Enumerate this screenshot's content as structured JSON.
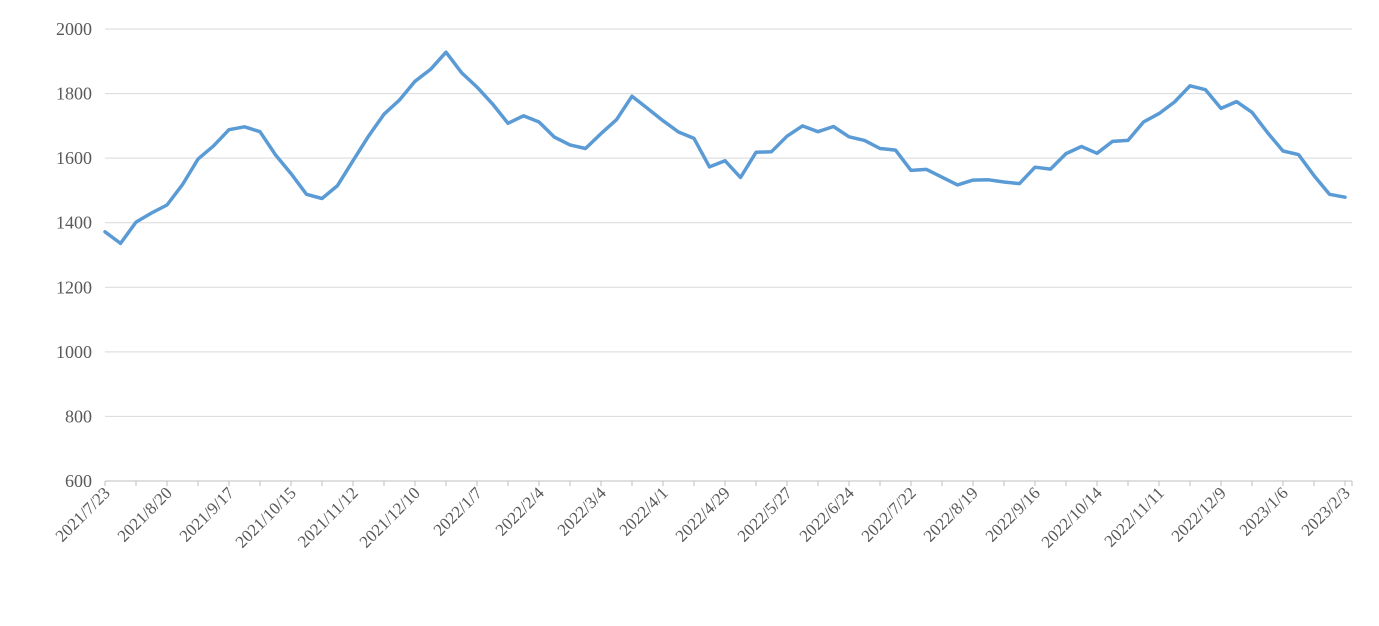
{
  "chart_data": {
    "type": "line",
    "title": "",
    "xlabel": "",
    "ylabel": "",
    "legend": "none",
    "grid": "horizontal",
    "ylim": [
      600,
      2000
    ],
    "yticks": [
      600,
      800,
      1000,
      1200,
      1400,
      1600,
      1800,
      2000
    ],
    "x_tick_label_every": 4,
    "x_tick_labels": [
      "2021/7/23",
      "2021/8/20",
      "2021/9/17",
      "2021/10/15",
      "2021/11/12",
      "2021/12/10",
      "2022/1/7",
      "2022/2/4",
      "2022/3/4",
      "2022/4/1",
      "2022/4/29",
      "2022/5/27",
      "2022/6/24",
      "2022/7/22",
      "2022/8/19",
      "2022/9/16",
      "2022/10/14",
      "2022/11/11",
      "2022/12/9",
      "2023/1/6",
      "2023/2/3"
    ],
    "x": [
      "2021/7/23",
      "2021/7/30",
      "2021/8/6",
      "2021/8/13",
      "2021/8/20",
      "2021/8/27",
      "2021/9/3",
      "2021/9/10",
      "2021/9/17",
      "2021/9/24",
      "2021/10/1",
      "2021/10/8",
      "2021/10/15",
      "2021/10/22",
      "2021/10/29",
      "2021/11/5",
      "2021/11/12",
      "2021/11/19",
      "2021/11/26",
      "2021/12/3",
      "2021/12/10",
      "2021/12/17",
      "2021/12/24",
      "2021/12/31",
      "2022/1/7",
      "2022/1/14",
      "2022/1/21",
      "2022/1/28",
      "2022/2/4",
      "2022/2/11",
      "2022/2/18",
      "2022/2/25",
      "2022/3/4",
      "2022/3/11",
      "2022/3/18",
      "2022/3/25",
      "2022/4/1",
      "2022/4/8",
      "2022/4/15",
      "2022/4/22",
      "2022/4/29",
      "2022/5/6",
      "2022/5/13",
      "2022/5/20",
      "2022/5/27",
      "2022/6/3",
      "2022/6/10",
      "2022/6/17",
      "2022/6/24",
      "2022/7/1",
      "2022/7/8",
      "2022/7/15",
      "2022/7/22",
      "2022/7/29",
      "2022/8/5",
      "2022/8/12",
      "2022/8/19",
      "2022/8/26",
      "2022/9/2",
      "2022/9/9",
      "2022/9/16",
      "2022/9/23",
      "2022/9/30",
      "2022/10/7",
      "2022/10/14",
      "2022/10/21",
      "2022/10/28",
      "2022/11/4",
      "2022/11/11",
      "2022/11/18",
      "2022/11/25",
      "2022/12/2",
      "2022/12/9",
      "2022/12/16",
      "2022/12/23",
      "2022/12/30",
      "2023/1/6",
      "2023/1/13",
      "2023/1/20",
      "2023/1/27",
      "2023/2/3"
    ],
    "values": [
      1372,
      1336,
      1402,
      1430,
      1455,
      1518,
      1597,
      1638,
      1688,
      1697,
      1682,
      1610,
      1552,
      1488,
      1475,
      1515,
      1592,
      1668,
      1736,
      1780,
      1838,
      1875,
      1928,
      1865,
      1820,
      1768,
      1708,
      1731,
      1712,
      1665,
      1641,
      1630,
      1676,
      1719,
      1792,
      1754,
      1716,
      1681,
      1661,
      1573,
      1592,
      1540,
      1618,
      1620,
      1668,
      1700,
      1682,
      1698,
      1666,
      1655,
      1630,
      1625,
      1562,
      1565,
      1541,
      1517,
      1532,
      1533,
      1526,
      1521,
      1572,
      1566,
      1614,
      1636,
      1615,
      1652,
      1655,
      1712,
      1738,
      1774,
      1824,
      1812,
      1754,
      1775,
      1742,
      1679,
      1622,
      1611,
      1546,
      1488,
      1479
    ],
    "line_color": "#5b9bd5",
    "axis_text_color": "#595959",
    "gridline_color": "#d9d9d9",
    "axis_line_color": "#bfbfbf",
    "tick_color": "#bfbfbf"
  }
}
